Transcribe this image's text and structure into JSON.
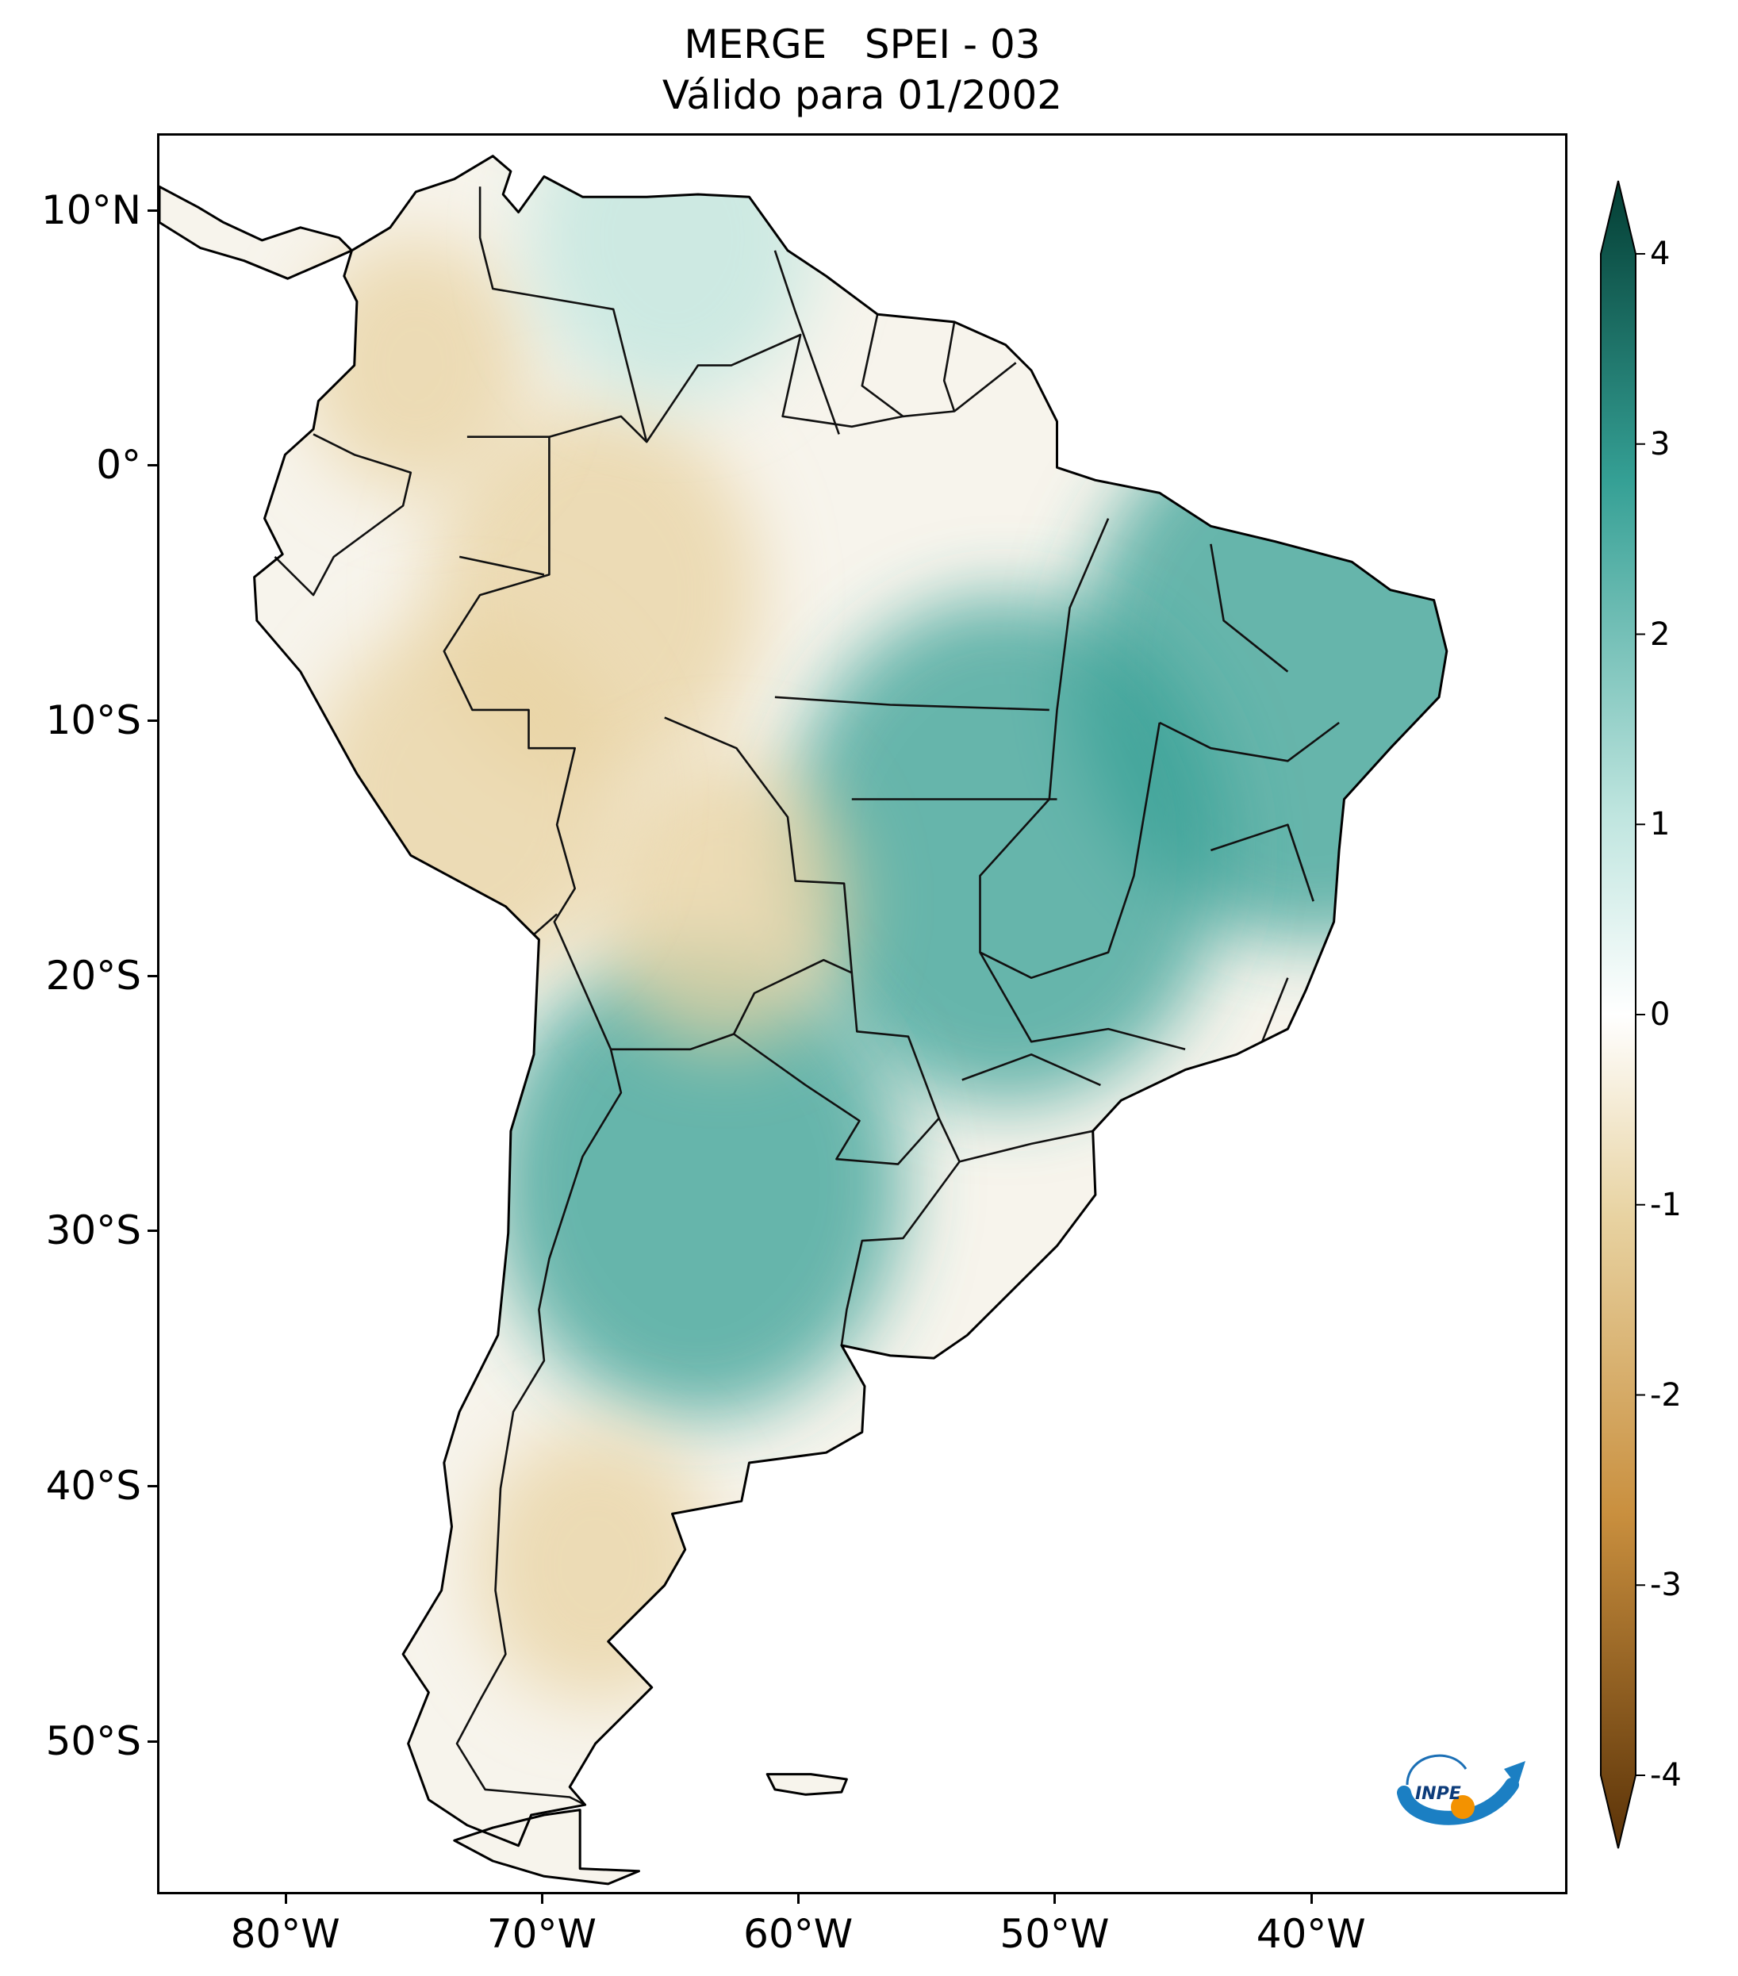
{
  "title": {
    "line1": "MERGE   SPEI - 03",
    "line2": "Válido para 01/2002"
  },
  "map": {
    "region": "South America",
    "lon_range": [
      -85,
      -30
    ],
    "lat_range": [
      -56,
      13
    ],
    "lat_ticks": [
      {
        "value": 10,
        "label": "10°N"
      },
      {
        "value": 0,
        "label": "0°"
      },
      {
        "value": -10,
        "label": "10°S"
      },
      {
        "value": -20,
        "label": "20°S"
      },
      {
        "value": -30,
        "label": "30°S"
      },
      {
        "value": -40,
        "label": "40°S"
      },
      {
        "value": -50,
        "label": "50°S"
      }
    ],
    "lon_ticks": [
      {
        "value": -80,
        "label": "80°W"
      },
      {
        "value": -70,
        "label": "70°W"
      },
      {
        "value": -60,
        "label": "60°W"
      },
      {
        "value": -50,
        "label": "50°W"
      },
      {
        "value": -40,
        "label": "40°W"
      }
    ],
    "anomalies": [
      {
        "region": "Northeast Brazil",
        "lon": -40,
        "lat": -8,
        "spei": 2.2
      },
      {
        "region": "Central Brazil",
        "lon": -52,
        "lat": -15,
        "spei": 2.0
      },
      {
        "region": "Western Amazon",
        "lon": -68,
        "lat": -5,
        "spei": -1.3
      },
      {
        "region": "Northern Argentina",
        "lon": -64,
        "lat": -28,
        "spei": 1.8
      },
      {
        "region": "Bolivia",
        "lon": -63,
        "lat": -17,
        "spei": -0.8
      },
      {
        "region": "Peru highlands",
        "lon": -73,
        "lat": -13,
        "spei": -1.2
      },
      {
        "region": "Patagonia",
        "lon": -68,
        "lat": -43,
        "spei": -0.7
      },
      {
        "region": "Colombia",
        "lon": -75,
        "lat": 4,
        "spei": -0.6
      },
      {
        "region": "Venezuela coast",
        "lon": -65,
        "lat": 9,
        "spei": 1.0
      }
    ]
  },
  "colorbar": {
    "min": -4,
    "max": 4,
    "ticks": [
      {
        "value": 4,
        "label": "4"
      },
      {
        "value": 3,
        "label": "3"
      },
      {
        "value": 2,
        "label": "2"
      },
      {
        "value": 1,
        "label": "1"
      },
      {
        "value": 0,
        "label": "0"
      },
      {
        "value": -1,
        "label": "-1"
      },
      {
        "value": -2,
        "label": "-2"
      },
      {
        "value": -3,
        "label": "-3"
      },
      {
        "value": -4,
        "label": "-4"
      }
    ],
    "colors": {
      "dry_extreme": "#5a3207",
      "dry": "#c98f3e",
      "dry_light": "#e8d3a2",
      "neutral": "#ffffff",
      "wet_light": "#bfe5df",
      "wet": "#35a095",
      "wet_extreme": "#033d33"
    }
  },
  "logo": {
    "text": "INPE"
  }
}
